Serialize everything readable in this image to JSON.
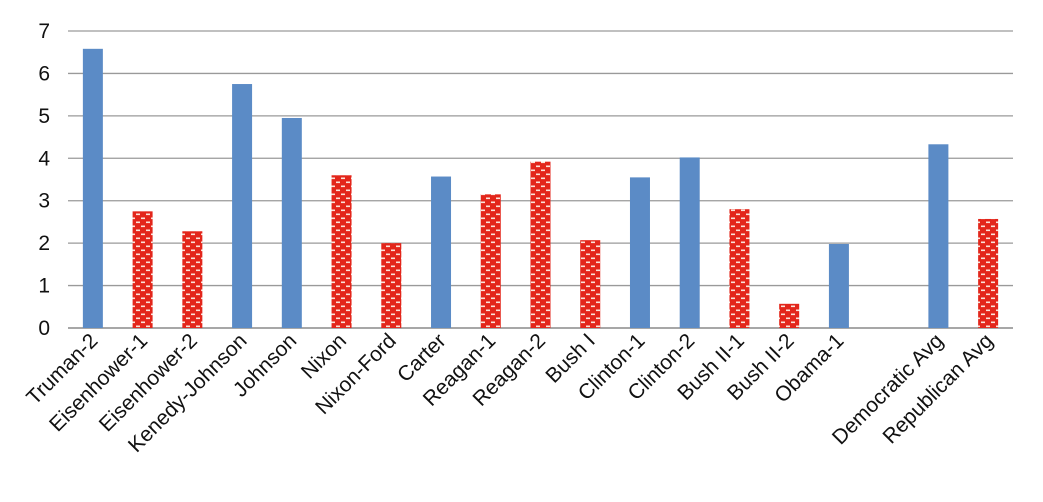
{
  "chart_data": {
    "type": "bar",
    "title": "",
    "xlabel": "",
    "ylabel": "",
    "ylim": [
      0,
      7
    ],
    "yticks": [
      "0",
      "1",
      "2",
      "3",
      "4",
      "5",
      "6",
      "7"
    ],
    "grid": true,
    "legend": "none",
    "categories": [
      "Truman-2",
      "Eisenhower-1",
      "Eisenhower-2",
      "Kenedy-Johnson",
      "Johnson",
      "Nixon",
      "Nixon-Ford",
      "Carter",
      "Reagan-1",
      "Reagan-2",
      "Bush I",
      "Clinton-1",
      "Clinton-2",
      "Bush II-1",
      "Bush II-2",
      "Obama-1",
      "",
      "Democratic Avg",
      "Republican Avg"
    ],
    "values": [
      6.58,
      2.75,
      2.28,
      5.75,
      4.95,
      3.6,
      2.0,
      3.57,
      3.15,
      3.92,
      2.07,
      3.55,
      4.02,
      2.8,
      0.57,
      1.98,
      null,
      4.33,
      2.57
    ],
    "party": [
      "D",
      "R",
      "R",
      "D",
      "D",
      "R",
      "R",
      "D",
      "R",
      "R",
      "R",
      "D",
      "D",
      "R",
      "R",
      "D",
      "",
      "D",
      "R"
    ],
    "colors": {
      "democratic": "#5b8bc6",
      "republican": "#e3261b",
      "republican_pattern": "#fbe3d9",
      "grid": "#9a9a9a"
    }
  }
}
